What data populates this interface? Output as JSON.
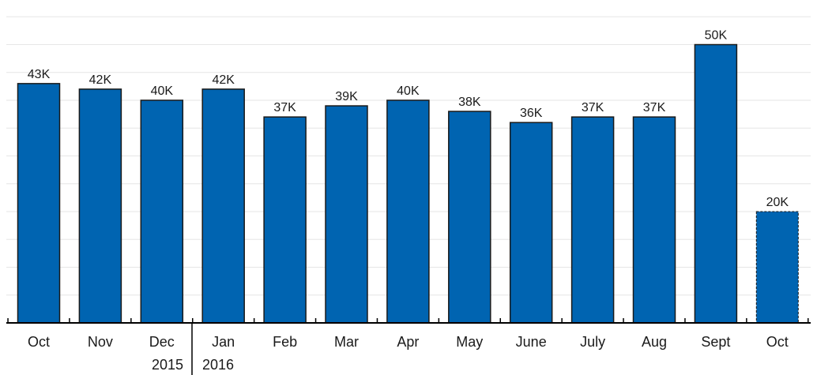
{
  "chart_data": {
    "type": "bar",
    "categories": [
      "Oct",
      "Nov",
      "Dec",
      "Jan",
      "Feb",
      "Mar",
      "Apr",
      "May",
      "June",
      "July",
      "Aug",
      "Sept",
      "Oct"
    ],
    "values": [
      43,
      42,
      40,
      42,
      37,
      39,
      40,
      38,
      36,
      37,
      37,
      50,
      20
    ],
    "value_labels": [
      "43K",
      "42K",
      "40K",
      "42K",
      "37K",
      "39K",
      "40K",
      "38K",
      "36K",
      "37K",
      "37K",
      "50K",
      "20K"
    ],
    "partial_last_bar": true,
    "year_labels": [
      {
        "text": "2015",
        "after_category_index": 2
      },
      {
        "text": "2016",
        "before_category_index": 3
      }
    ],
    "title": "",
    "xlabel": "",
    "ylabel": "",
    "ylim": [
      0,
      55
    ],
    "grid": true,
    "bar_color": "#0064b1",
    "grid_color": "#e6e6e6"
  }
}
